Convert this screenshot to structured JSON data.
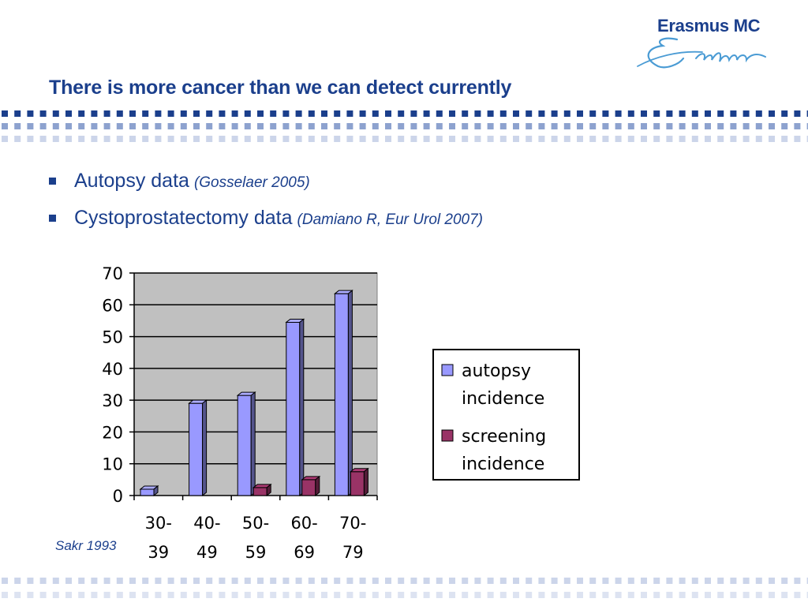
{
  "logo": {
    "name": "Erasmus MC",
    "wordmark_script": "Erafmus"
  },
  "slide": {
    "title": "There is more cancer than we can detect currently"
  },
  "bullets": [
    {
      "text": "Autopsy data",
      "cite": "(Gosselaer 2005)"
    },
    {
      "text": "Cystoprostatectomy data",
      "cite": "(Damiano R, Eur Urol 2007)"
    }
  ],
  "source": "Sakr 1993",
  "colors": {
    "brand_blue": "#1b3f8c",
    "autopsy": "#9999ff",
    "screening": "#993366",
    "plot_area": "#c0c0c0"
  },
  "chart_data": {
    "type": "bar",
    "three_d": true,
    "categories": [
      "30-39",
      "40-49",
      "50-59",
      "60-69",
      "70-79"
    ],
    "category_lines": [
      [
        "30-",
        "39"
      ],
      [
        "40-",
        "49"
      ],
      [
        "50-",
        "59"
      ],
      [
        "60-",
        "69"
      ],
      [
        "70-",
        "79"
      ]
    ],
    "series": [
      {
        "name": "autopsy incidence",
        "name_lines": [
          "autopsy",
          "incidence"
        ],
        "values": [
          2,
          29,
          31.5,
          54.5,
          63.5
        ],
        "color": "#9999ff"
      },
      {
        "name": "screening incidence",
        "name_lines": [
          "screening",
          "incidence"
        ],
        "values": [
          0,
          0,
          2.5,
          5,
          7.5
        ],
        "color": "#993366"
      }
    ],
    "ylim": [
      0,
      70
    ],
    "yticks": [
      0,
      10,
      20,
      30,
      40,
      50,
      60,
      70
    ],
    "grid": true,
    "legend": "right",
    "title": "",
    "xlabel": "",
    "ylabel": ""
  }
}
